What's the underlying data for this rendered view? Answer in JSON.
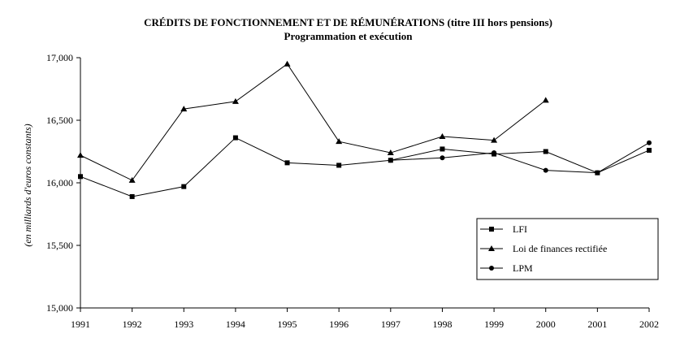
{
  "chart_data": {
    "type": "line",
    "title": "CRÉDITS DE FONCTIONNEMENT ET DE RÉMUNÉRATIONS (titre III hors pensions)",
    "subtitle": "Programmation et exécution",
    "ylabel": "(en milliards d'euros constants)",
    "xlabel": "",
    "ylim": [
      15000,
      17000
    ],
    "yticks": [
      15000,
      15500,
      16000,
      16500,
      17000
    ],
    "ytick_labels": [
      "15,000",
      "15,500",
      "16,000",
      "16,500",
      "17,000"
    ],
    "x": [
      "1991",
      "1992",
      "1993",
      "1994",
      "1995",
      "1996",
      "1997",
      "1998",
      "1999",
      "2000",
      "2001",
      "2002"
    ],
    "grid": false,
    "legend_position": "right",
    "series": [
      {
        "name": "LFI",
        "marker": "square",
        "values": [
          16050,
          15890,
          15970,
          16360,
          16160,
          16140,
          16180,
          16270,
          16230,
          16250,
          16080,
          16260
        ]
      },
      {
        "name": "Loi de finances rectifiée",
        "marker": "triangle",
        "values": [
          16220,
          16020,
          16590,
          16650,
          16950,
          16330,
          16240,
          16370,
          16340,
          16660,
          null,
          null
        ]
      },
      {
        "name": "LPM",
        "marker": "circle",
        "values": [
          null,
          null,
          null,
          null,
          null,
          null,
          16180,
          16200,
          16240,
          16100,
          16080,
          16320
        ]
      }
    ]
  }
}
